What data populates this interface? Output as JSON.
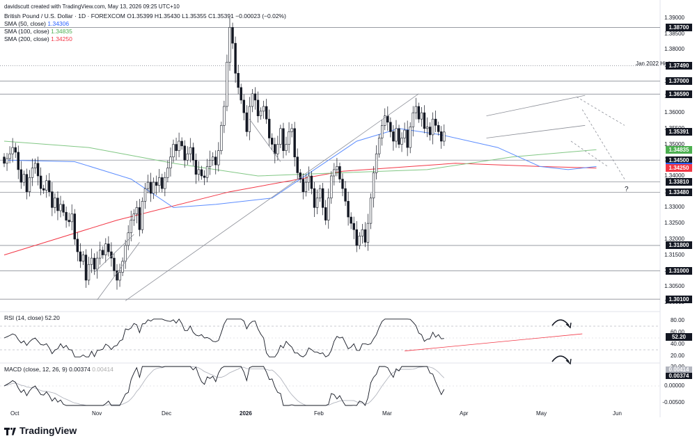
{
  "header": {
    "creator": "davidscutt created with TradingView.com, May 13, 2026 09:25 UTC+10",
    "title": "British Pound / U.S. Dollar · 1D · FOREXCOM",
    "ohlc": "O1.35399 H1.35430 L1.35355 C1.35391 −0.00023 (−0.02%)"
  },
  "sma": [
    {
      "label": "SMA (50, close)",
      "value": "1.34306",
      "color": "#2962ff"
    },
    {
      "label": "SMA (100, close)",
      "value": "1.34835",
      "color": "#4caf50"
    },
    {
      "label": "SMA (200, close)",
      "value": "1.34250",
      "color": "#f23645"
    }
  ],
  "rsi_label": {
    "name": "RSI (14, close)",
    "value": "52.20"
  },
  "macd_label": {
    "name": "MACD (close, 12, 26, 9)",
    "v1": "0.00374",
    "v2": "0.00414"
  },
  "brand": "TradingView",
  "annotation_jan": "Jan 2022 High",
  "annotation_q": "?",
  "chart_data": {
    "type": "candlestick",
    "symbol": "GBPUSD",
    "price_axis": {
      "ticks": [
        "1.39000",
        "1.38500",
        "1.38000",
        "1.37500",
        "1.37000",
        "1.36500",
        "1.36000",
        "1.35500",
        "1.35000",
        "1.34500",
        "1.34000",
        "1.33500",
        "1.33000",
        "1.32500",
        "1.32000",
        "1.31500",
        "1.31000",
        "1.30500",
        "1.30000"
      ],
      "range": [
        1.2995,
        1.3915
      ]
    },
    "horizontal_levels": [
      {
        "value": "1.38700",
        "style": "solid"
      },
      {
        "value": "1.37490",
        "style": "dotted"
      },
      {
        "value": "1.37000",
        "style": "solid"
      },
      {
        "value": "1.36590",
        "style": "solid"
      },
      {
        "value": "1.34500",
        "style": "solid"
      },
      {
        "value": "1.33810",
        "style": "solid"
      },
      {
        "value": "1.33480",
        "style": "solid"
      },
      {
        "value": "1.31800",
        "style": "solid"
      },
      {
        "value": "1.31000",
        "style": "solid"
      },
      {
        "value": "1.30100",
        "style": "solid"
      }
    ],
    "price_badges": [
      {
        "value": "1.35391",
        "color": "#131722"
      },
      {
        "value": "1.34835",
        "color": "#4caf50"
      },
      {
        "value": "1.34306",
        "color": "#2962ff"
      },
      {
        "value": "1.34250",
        "color": "#f23645"
      }
    ],
    "x_axis": [
      "Oct",
      "Nov",
      "Dec",
      "2026",
      "Feb",
      "Mar",
      "Apr",
      "May",
      "Jun"
    ],
    "closes": [
      1.344,
      1.3455,
      1.347,
      1.349,
      1.3475,
      1.342,
      1.338,
      1.3405,
      1.335,
      1.3395,
      1.3425,
      1.344,
      1.34,
      1.336,
      1.3355,
      1.3385,
      1.335,
      1.33,
      1.333,
      1.329,
      1.331,
      1.3285,
      1.326,
      1.3255,
      1.328,
      1.32,
      1.316,
      1.313,
      1.315,
      1.307,
      1.312,
      1.314,
      1.3105,
      1.314,
      1.3165,
      1.315,
      1.3185,
      1.316,
      1.314,
      1.31,
      1.307,
      1.3095,
      1.313,
      1.318,
      1.322,
      1.326,
      1.328,
      1.33,
      1.323,
      1.332,
      1.336,
      1.338,
      1.3345,
      1.338,
      1.337,
      1.3395,
      1.336,
      1.3395,
      1.3425,
      1.346,
      1.35,
      1.348,
      1.351,
      1.3495,
      1.345,
      1.347,
      1.349,
      1.345,
      1.3405,
      1.342,
      1.34,
      1.3395,
      1.343,
      1.345,
      1.346,
      1.3435,
      1.348,
      1.356,
      1.362,
      1.376,
      1.387,
      1.382,
      1.3725,
      1.368,
      1.364,
      1.36,
      1.354,
      1.362,
      1.366,
      1.364,
      1.359,
      1.3605,
      1.362,
      1.358,
      1.352,
      1.35,
      1.347,
      1.35,
      1.355,
      1.348,
      1.35,
      1.354,
      1.355,
      1.346,
      1.341,
      1.339,
      1.335,
      1.338,
      1.34,
      1.336,
      1.33,
      1.333,
      1.336,
      1.33,
      1.326,
      1.333,
      1.34,
      1.342,
      1.343,
      1.339,
      1.336,
      1.332,
      1.327,
      1.325,
      1.323,
      1.318,
      1.321,
      1.323,
      1.319,
      1.325,
      1.333,
      1.341,
      1.347,
      1.352,
      1.356,
      1.359,
      1.357,
      1.354,
      1.351,
      1.355,
      1.35,
      1.352,
      1.3545,
      1.349,
      1.3555,
      1.36,
      1.362,
      1.358,
      1.36,
      1.355,
      1.3555,
      1.353,
      1.358,
      1.356,
      1.354,
      1.351,
      1.3539
    ],
    "sma50": [
      [
        0,
        1.345
      ],
      [
        25,
        1.3445
      ],
      [
        45,
        1.339
      ],
      [
        60,
        1.33
      ],
      [
        75,
        1.331
      ],
      [
        95,
        1.333
      ],
      [
        110,
        1.342
      ],
      [
        125,
        1.351
      ],
      [
        140,
        1.355
      ],
      [
        155,
        1.353
      ],
      [
        175,
        1.349
      ],
      [
        190,
        1.343
      ],
      [
        200,
        1.342
      ],
      [
        210,
        1.343
      ]
    ],
    "sma100": [
      [
        0,
        1.351
      ],
      [
        30,
        1.349
      ],
      [
        60,
        1.344
      ],
      [
        90,
        1.34
      ],
      [
        120,
        1.341
      ],
      [
        150,
        1.342
      ],
      [
        180,
        1.346
      ],
      [
        210,
        1.3483
      ]
    ],
    "sma200": [
      [
        0,
        1.315
      ],
      [
        40,
        1.326
      ],
      [
        80,
        1.335
      ],
      [
        120,
        1.3415
      ],
      [
        160,
        1.344
      ],
      [
        190,
        1.343
      ],
      [
        210,
        1.3425
      ]
    ],
    "rsi_axis": [
      "80.00",
      "60.00",
      "40.00",
      "20.00"
    ],
    "rsi_levels": [
      70,
      30
    ],
    "rsi_value": "52.20",
    "macd_axis": [
      "20.00",
      "0.00000",
      "-0.00500"
    ],
    "macd_values": [
      "0.00414",
      "0.00374"
    ]
  }
}
